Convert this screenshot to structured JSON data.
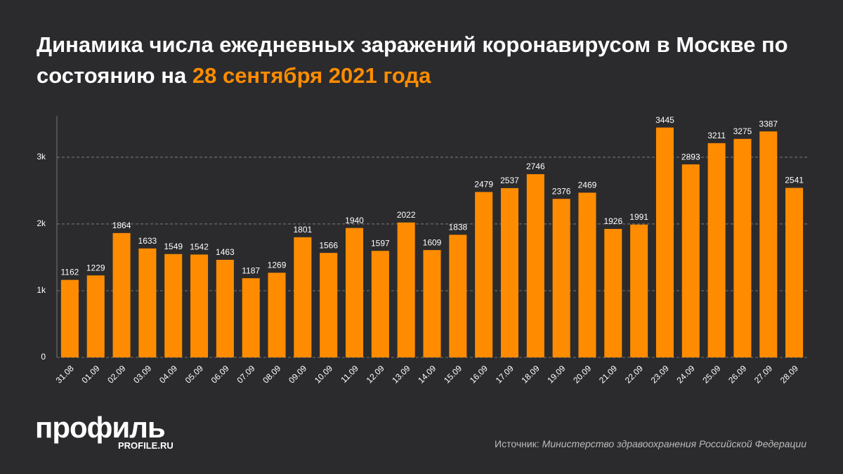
{
  "chart_data": {
    "type": "bar",
    "title": "Динамика числа ежедневных заражений коронавирусом в Москве по состоянию на",
    "title_date": "28 сентября 2021 года",
    "categories": [
      "31.08",
      "01.09",
      "02.09",
      "03.09",
      "04.09",
      "05.09",
      "06.09",
      "07.09",
      "08.09",
      "09.09",
      "10.09",
      "11.09",
      "12.09",
      "13.09",
      "14.09",
      "15.09",
      "16.09",
      "17.09",
      "18.09",
      "19.09",
      "20.09",
      "21.09",
      "22.09",
      "23.09",
      "24.09",
      "25.09",
      "26.09",
      "27.09",
      "28.09"
    ],
    "values": [
      1162,
      1229,
      1864,
      1633,
      1549,
      1542,
      1463,
      1187,
      1269,
      1801,
      1566,
      1940,
      1597,
      2022,
      1609,
      1838,
      2479,
      2537,
      2746,
      2376,
      2469,
      1926,
      1991,
      3445,
      2893,
      3211,
      3275,
      3387,
      2541
    ],
    "color": "#ff8c00",
    "ylim": [
      0,
      3620
    ],
    "yticks": [
      0,
      {
        "value": 1000,
        "label": "1k"
      },
      {
        "value": 2000,
        "label": "2k"
      },
      {
        "value": 3000,
        "label": "3k"
      }
    ],
    "grid": true,
    "source_label": "Источник:",
    "source": "Министерство здравоохранения Российской Федерации",
    "brand": "профиль",
    "brand_site": "PROFILE.RU"
  }
}
